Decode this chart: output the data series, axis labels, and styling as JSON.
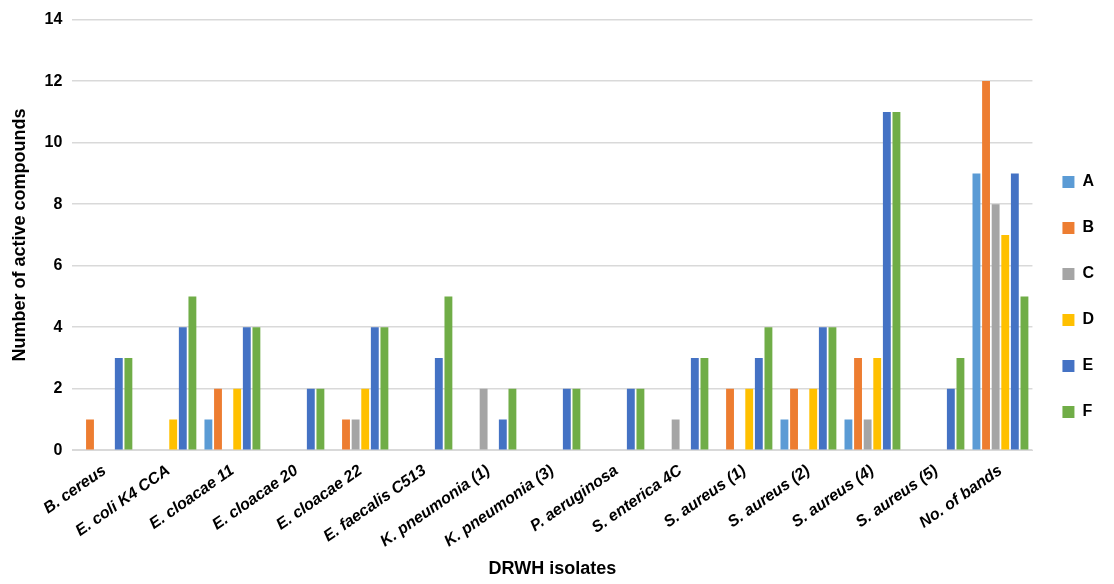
{
  "chart_data": {
    "type": "bar",
    "xlabel": "DRWH isolates",
    "ylabel": "Number of active compounds",
    "categories": [
      "B. cereus",
      "E. coli K4 CCA",
      "E. cloacae 11",
      "E. cloacae 20",
      "E. cloacae 22",
      "E. faecalis C513",
      "K. pneumonia (1)",
      "K. pneumonia (3)",
      "P. aeruginosa",
      "S. enterica 4C",
      "S. aureus (1)",
      "S. aureus (2)",
      "S. aureus (4)",
      "S. aureus (5)",
      "No. of bands"
    ],
    "series": [
      {
        "name": "A",
        "color": "#5b9bd5",
        "values": [
          0,
          0,
          1,
          0,
          0,
          0,
          0,
          0,
          0,
          0,
          0,
          1,
          1,
          0,
          9
        ]
      },
      {
        "name": "B",
        "color": "#ed7d31",
        "values": [
          1,
          0,
          2,
          0,
          1,
          0,
          0,
          0,
          0,
          0,
          2,
          2,
          3,
          0,
          12
        ]
      },
      {
        "name": "C",
        "color": "#a5a5a5",
        "values": [
          0,
          0,
          0,
          0,
          1,
          0,
          2,
          0,
          0,
          1,
          0,
          0,
          1,
          0,
          8
        ]
      },
      {
        "name": "D",
        "color": "#ffc000",
        "values": [
          0,
          1,
          2,
          0,
          2,
          0,
          0,
          0,
          0,
          0,
          2,
          2,
          3,
          0,
          7
        ]
      },
      {
        "name": "E",
        "color": "#4472c4",
        "values": [
          3,
          4,
          4,
          2,
          4,
          3,
          1,
          2,
          2,
          3,
          3,
          4,
          11,
          2,
          9
        ]
      },
      {
        "name": "F",
        "color": "#70ad47",
        "values": [
          3,
          5,
          4,
          2,
          4,
          5,
          2,
          2,
          2,
          3,
          4,
          4,
          11,
          3,
          5
        ]
      }
    ],
    "ylim": [
      0,
      14
    ],
    "yticks": [
      0,
      2,
      4,
      6,
      8,
      10,
      12,
      14
    ],
    "grid": "y",
    "legend": "right"
  }
}
